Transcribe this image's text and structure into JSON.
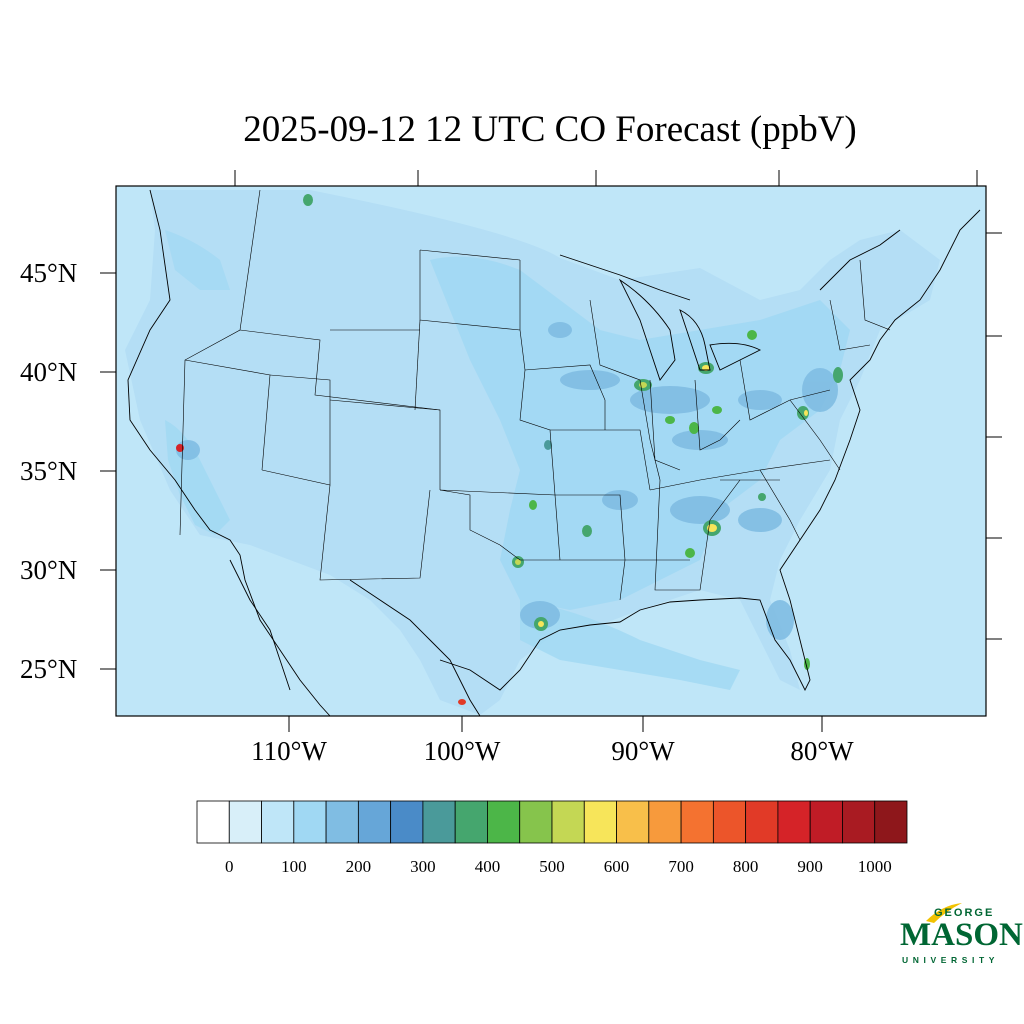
{
  "title": "2025-09-12 12 UTC CO Forecast (ppbV)",
  "map": {
    "lat_labels": [
      "45°N",
      "40°N",
      "35°N",
      "30°N",
      "25°N"
    ],
    "lon_labels": [
      "110°W",
      "100°W",
      "90°W",
      "80°W"
    ]
  },
  "colorbar": {
    "labels": [
      "0",
      "100",
      "200",
      "300",
      "400",
      "500",
      "600",
      "700",
      "800",
      "900",
      "1000"
    ],
    "colors": [
      "#ffffff",
      "#d8eff9",
      "#bfe6f8",
      "#a0d8f3",
      "#80bde3",
      "#66a6d8",
      "#4a8bc8",
      "#4a9a9a",
      "#45a66e",
      "#4cb648",
      "#86c44c",
      "#c4d754",
      "#f7e55a",
      "#f8bf4a",
      "#f79a3c",
      "#f47230",
      "#ec552a",
      "#e13a27",
      "#d52328",
      "#c01c26",
      "#a91b22",
      "#8e171b"
    ]
  },
  "logo": {
    "line1": "GEORGE",
    "line2": "MASON",
    "line3": "UNIVERSITY"
  }
}
